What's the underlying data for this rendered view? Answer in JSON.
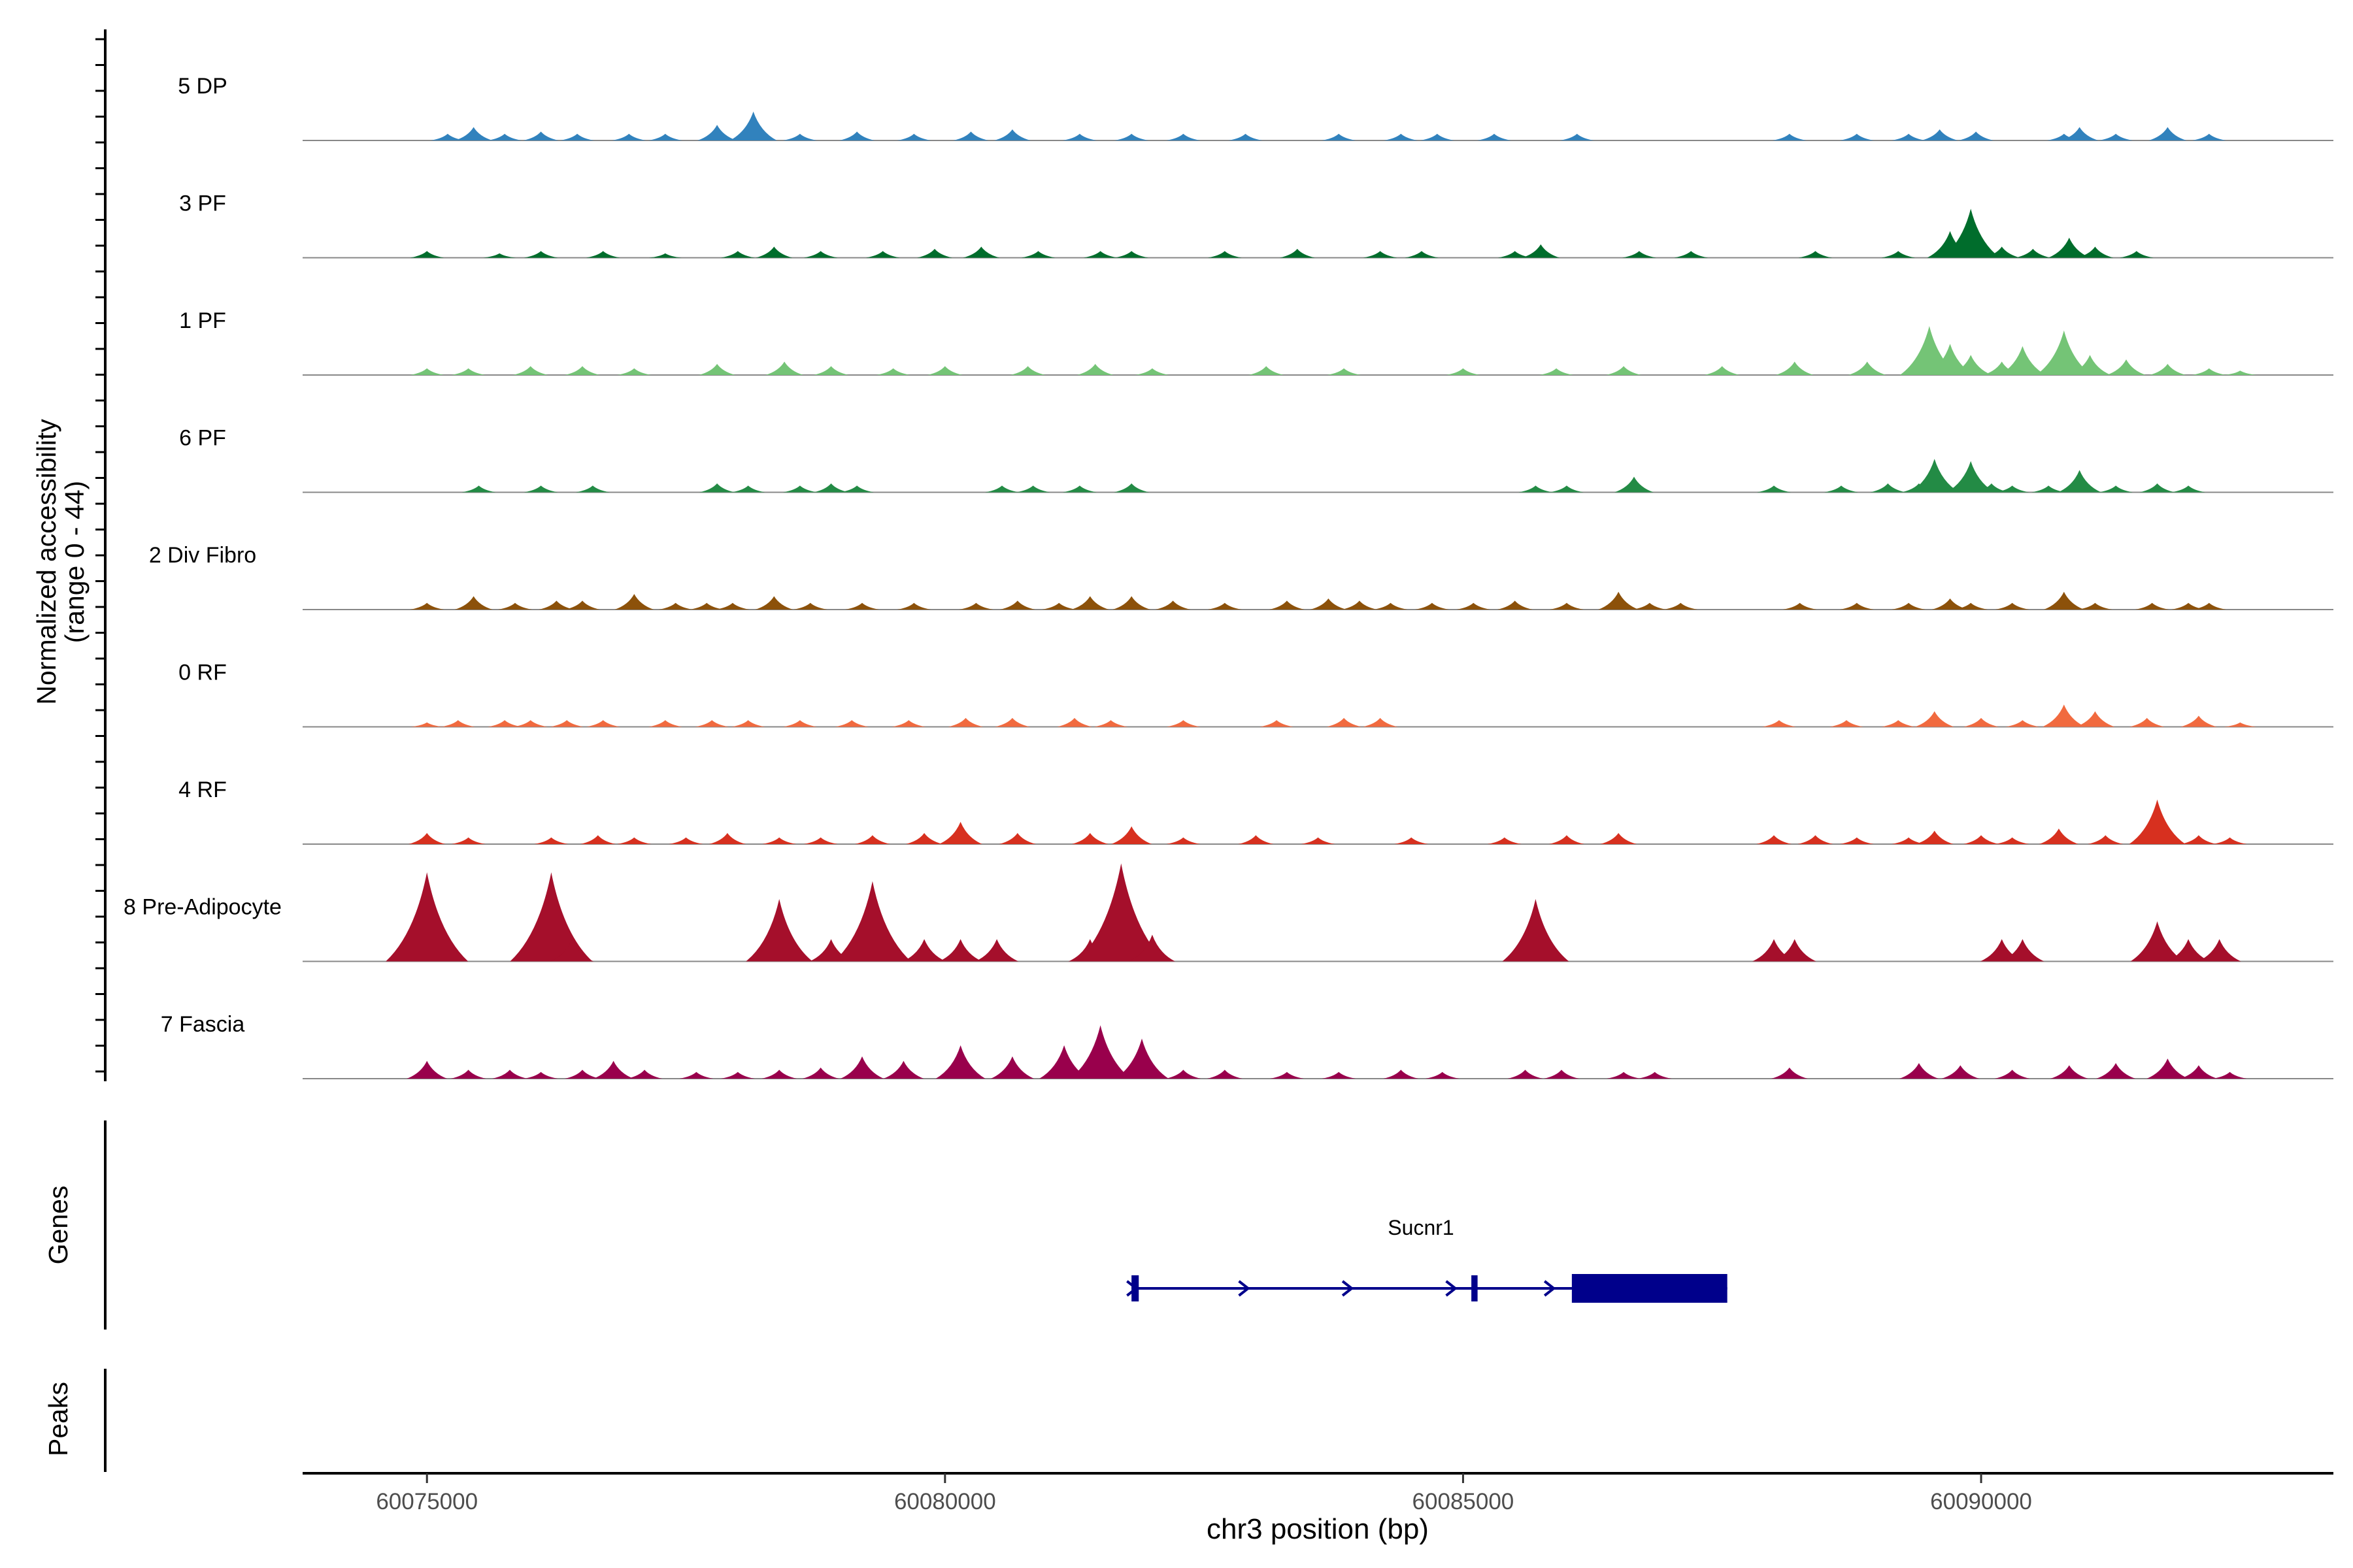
{
  "chart_data": {
    "type": "area",
    "chromosome": "chr3",
    "xlabel": "chr3 position (bp)",
    "ylabel_line1": "Normalized accessibility",
    "ylabel_line2": "(range 0 - 44)",
    "ylim": [
      0,
      44
    ],
    "xlim": [
      60073800,
      60093400
    ],
    "x_ticks": [
      60075000,
      60080000,
      60085000,
      60090000
    ],
    "x_tick_labels": [
      "60075000",
      "60080000",
      "60085000",
      "60090000"
    ],
    "genes_label": "Genes",
    "peaks_label": "Peaks",
    "tracks": [
      {
        "name": "5 DP",
        "color": "#3182BD",
        "points": [
          [
            60075200,
            3
          ],
          [
            60075450,
            6
          ],
          [
            60075750,
            3
          ],
          [
            60076100,
            4
          ],
          [
            60076450,
            3
          ],
          [
            60076950,
            3
          ],
          [
            60077300,
            3
          ],
          [
            60077800,
            7
          ],
          [
            60078150,
            13
          ],
          [
            60078600,
            3
          ],
          [
            60079150,
            4
          ],
          [
            60079700,
            3
          ],
          [
            60080250,
            4
          ],
          [
            60080650,
            5
          ],
          [
            60081300,
            3
          ],
          [
            60081800,
            3
          ],
          [
            60082300,
            3
          ],
          [
            60082900,
            3
          ],
          [
            60083800,
            3
          ],
          [
            60084400,
            3
          ],
          [
            60084750,
            3
          ],
          [
            60085300,
            3
          ],
          [
            60086100,
            3
          ],
          [
            60088150,
            3
          ],
          [
            60088800,
            3
          ],
          [
            60089300,
            3
          ],
          [
            60089600,
            5
          ],
          [
            60089950,
            4
          ],
          [
            60090800,
            3
          ],
          [
            60090950,
            6
          ],
          [
            60091300,
            3
          ],
          [
            60091800,
            6
          ],
          [
            60092200,
            3
          ]
        ]
      },
      {
        "name": "3 PF",
        "color": "#006D2C",
        "points": [
          [
            60075000,
            3
          ],
          [
            60075700,
            2
          ],
          [
            60076100,
            3
          ],
          [
            60076700,
            3
          ],
          [
            60077300,
            2
          ],
          [
            60078000,
            3
          ],
          [
            60078350,
            5
          ],
          [
            60078800,
            3
          ],
          [
            60079400,
            3
          ],
          [
            60079900,
            4
          ],
          [
            60080350,
            5
          ],
          [
            60080900,
            3
          ],
          [
            60081500,
            3
          ],
          [
            60081800,
            3
          ],
          [
            60082700,
            3
          ],
          [
            60083400,
            4
          ],
          [
            60084200,
            3
          ],
          [
            60084600,
            3
          ],
          [
            60085500,
            3
          ],
          [
            60085750,
            6
          ],
          [
            60086700,
            3
          ],
          [
            60087200,
            3
          ],
          [
            60088400,
            3
          ],
          [
            60089200,
            3
          ],
          [
            60089700,
            12
          ],
          [
            60089900,
            22
          ],
          [
            60090200,
            5
          ],
          [
            60090500,
            4
          ],
          [
            60090850,
            9
          ],
          [
            60091100,
            5
          ],
          [
            60091500,
            3
          ]
        ]
      },
      {
        "name": "1 PF",
        "color": "#74C476",
        "points": [
          [
            60075000,
            3
          ],
          [
            60075400,
            3
          ],
          [
            60076000,
            4
          ],
          [
            60076500,
            4
          ],
          [
            60077000,
            3
          ],
          [
            60077800,
            5
          ],
          [
            60078450,
            6
          ],
          [
            60078900,
            4
          ],
          [
            60079500,
            3
          ],
          [
            60080000,
            4
          ],
          [
            60080800,
            4
          ],
          [
            60081450,
            5
          ],
          [
            60082000,
            3
          ],
          [
            60083100,
            4
          ],
          [
            60083850,
            3
          ],
          [
            60085000,
            3
          ],
          [
            60085900,
            3
          ],
          [
            60086550,
            4
          ],
          [
            60087500,
            4
          ],
          [
            60088200,
            6
          ],
          [
            60088900,
            6
          ],
          [
            60089500,
            22
          ],
          [
            60089700,
            14
          ],
          [
            60089900,
            9
          ],
          [
            60090200,
            6
          ],
          [
            60090400,
            13
          ],
          [
            60090700,
            5
          ],
          [
            60090800,
            20
          ],
          [
            60091050,
            9
          ],
          [
            60091400,
            7
          ],
          [
            60091800,
            5
          ],
          [
            60092200,
            3
          ],
          [
            60092500,
            2
          ]
        ]
      },
      {
        "name": "6 PF",
        "color": "#238B45",
        "points": [
          [
            60075500,
            3
          ],
          [
            60076100,
            3
          ],
          [
            60076600,
            3
          ],
          [
            60077800,
            4
          ],
          [
            60078100,
            3
          ],
          [
            60078600,
            3
          ],
          [
            60078900,
            4
          ],
          [
            60079150,
            3
          ],
          [
            60080550,
            3
          ],
          [
            60080850,
            3
          ],
          [
            60081300,
            3
          ],
          [
            60081800,
            4
          ],
          [
            60085700,
            3
          ],
          [
            60086000,
            3
          ],
          [
            60086650,
            7
          ],
          [
            60088000,
            3
          ],
          [
            60088650,
            3
          ],
          [
            60089100,
            4
          ],
          [
            60089400,
            4
          ],
          [
            60089550,
            15
          ],
          [
            60089900,
            14
          ],
          [
            60090100,
            4
          ],
          [
            60090300,
            3
          ],
          [
            60090650,
            3
          ],
          [
            60090950,
            10
          ],
          [
            60091300,
            3
          ],
          [
            60091700,
            4
          ],
          [
            60092000,
            3
          ]
        ]
      },
      {
        "name": "2 Div Fibro",
        "color": "#8C510A",
        "points": [
          [
            60075000,
            3
          ],
          [
            60075450,
            6
          ],
          [
            60075850,
            3
          ],
          [
            60076250,
            4
          ],
          [
            60076500,
            4
          ],
          [
            60077000,
            7
          ],
          [
            60077400,
            3
          ],
          [
            60077700,
            3
          ],
          [
            60077950,
            3
          ],
          [
            60078350,
            6
          ],
          [
            60078700,
            3
          ],
          [
            60079200,
            3
          ],
          [
            60079700,
            3
          ],
          [
            60080300,
            3
          ],
          [
            60080700,
            4
          ],
          [
            60081100,
            3
          ],
          [
            60081400,
            6
          ],
          [
            60081800,
            6
          ],
          [
            60082200,
            4
          ],
          [
            60082700,
            3
          ],
          [
            60083300,
            4
          ],
          [
            60083700,
            5
          ],
          [
            60084000,
            4
          ],
          [
            60084300,
            3
          ],
          [
            60084700,
            3
          ],
          [
            60085100,
            3
          ],
          [
            60085500,
            4
          ],
          [
            60086000,
            3
          ],
          [
            60086500,
            8
          ],
          [
            60086800,
            3
          ],
          [
            60087100,
            3
          ],
          [
            60088250,
            3
          ],
          [
            60088800,
            3
          ],
          [
            60089300,
            3
          ],
          [
            60089700,
            5
          ],
          [
            60089900,
            3
          ],
          [
            60090300,
            3
          ],
          [
            60090800,
            8
          ],
          [
            60091100,
            3
          ],
          [
            60091650,
            3
          ],
          [
            60092000,
            3
          ],
          [
            60092200,
            3
          ]
        ]
      },
      {
        "name": "0 RF",
        "color": "#F16A3F",
        "points": [
          [
            60075000,
            2
          ],
          [
            60075300,
            3
          ],
          [
            60075750,
            3
          ],
          [
            60076000,
            3
          ],
          [
            60076350,
            3
          ],
          [
            60076700,
            3
          ],
          [
            60077300,
            3
          ],
          [
            60077750,
            3
          ],
          [
            60078100,
            3
          ],
          [
            60078600,
            3
          ],
          [
            60079100,
            3
          ],
          [
            60079650,
            3
          ],
          [
            60080200,
            4
          ],
          [
            60080650,
            4
          ],
          [
            60081250,
            4
          ],
          [
            60081600,
            3
          ],
          [
            60082300,
            3
          ],
          [
            60083200,
            3
          ],
          [
            60083850,
            4
          ],
          [
            60084200,
            4
          ],
          [
            60088050,
            3
          ],
          [
            60088700,
            3
          ],
          [
            60089200,
            3
          ],
          [
            60089550,
            7
          ],
          [
            60090000,
            4
          ],
          [
            60090400,
            3
          ],
          [
            60090800,
            10
          ],
          [
            60091100,
            7
          ],
          [
            60091600,
            4
          ],
          [
            60092100,
            5
          ],
          [
            60092500,
            2
          ]
        ]
      },
      {
        "name": "4 RF",
        "color": "#D7301F",
        "points": [
          [
            60075000,
            5
          ],
          [
            60075400,
            3
          ],
          [
            60076200,
            3
          ],
          [
            60076650,
            4
          ],
          [
            60077000,
            3
          ],
          [
            60077500,
            3
          ],
          [
            60077900,
            5
          ],
          [
            60078400,
            3
          ],
          [
            60078800,
            3
          ],
          [
            60079300,
            4
          ],
          [
            60079800,
            5
          ],
          [
            60080150,
            10
          ],
          [
            60080700,
            5
          ],
          [
            60081400,
            5
          ],
          [
            60081800,
            8
          ],
          [
            60082300,
            3
          ],
          [
            60083000,
            4
          ],
          [
            60083600,
            3
          ],
          [
            60084500,
            3
          ],
          [
            60085400,
            3
          ],
          [
            60086000,
            4
          ],
          [
            60086500,
            5
          ],
          [
            60088000,
            4
          ],
          [
            60088400,
            4
          ],
          [
            60088800,
            3
          ],
          [
            60089300,
            3
          ],
          [
            60089550,
            6
          ],
          [
            60090000,
            4
          ],
          [
            60090300,
            3
          ],
          [
            60090750,
            7
          ],
          [
            60091200,
            4
          ],
          [
            60091700,
            20
          ],
          [
            60092100,
            4
          ],
          [
            60092400,
            3
          ]
        ]
      },
      {
        "name": "8 Pre-Adipocyte",
        "color": "#A50F2B",
        "points": [
          [
            60075000,
            40
          ],
          [
            60076200,
            40
          ],
          [
            60076400,
            10
          ],
          [
            60078400,
            28
          ],
          [
            60078900,
            10
          ],
          [
            60079300,
            36
          ],
          [
            60079800,
            10
          ],
          [
            60080150,
            10
          ],
          [
            60080500,
            10
          ],
          [
            60081400,
            10
          ],
          [
            60081700,
            44
          ],
          [
            60082000,
            12
          ],
          [
            60085700,
            28
          ],
          [
            60088000,
            10
          ],
          [
            60088200,
            10
          ],
          [
            60090200,
            10
          ],
          [
            60090400,
            10
          ],
          [
            60091700,
            18
          ],
          [
            60092000,
            10
          ],
          [
            60092300,
            10
          ]
        ]
      },
      {
        "name": "7 Fascia",
        "color": "#99004C",
        "points": [
          [
            60075000,
            8
          ],
          [
            60075400,
            4
          ],
          [
            60075800,
            4
          ],
          [
            60076100,
            3
          ],
          [
            60076500,
            4
          ],
          [
            60076800,
            8
          ],
          [
            60077100,
            4
          ],
          [
            60077600,
            3
          ],
          [
            60078000,
            3
          ],
          [
            60078400,
            4
          ],
          [
            60078800,
            5
          ],
          [
            60079200,
            10
          ],
          [
            60079600,
            8
          ],
          [
            60080150,
            15
          ],
          [
            60080650,
            10
          ],
          [
            60081150,
            15
          ],
          [
            60081500,
            24
          ],
          [
            60081900,
            18
          ],
          [
            60082300,
            4
          ],
          [
            60082700,
            4
          ],
          [
            60083300,
            3
          ],
          [
            60083800,
            3
          ],
          [
            60084400,
            4
          ],
          [
            60084800,
            3
          ],
          [
            60085600,
            4
          ],
          [
            60085950,
            4
          ],
          [
            60086550,
            3
          ],
          [
            60086850,
            3
          ],
          [
            60088150,
            5
          ],
          [
            60089400,
            7
          ],
          [
            60089800,
            6
          ],
          [
            60090300,
            4
          ],
          [
            60090850,
            6
          ],
          [
            60091300,
            7
          ],
          [
            60091800,
            9
          ],
          [
            60092100,
            6
          ],
          [
            60092400,
            3
          ]
        ]
      }
    ],
    "gene": {
      "name": "Sucnr1",
      "start": 60081800,
      "end": 60087550,
      "strand": "+",
      "color": "#00008B",
      "exons": [
        [
          60081800,
          60081870
        ],
        [
          60085080,
          60085140
        ],
        [
          60086050,
          60087550
        ]
      ]
    }
  }
}
